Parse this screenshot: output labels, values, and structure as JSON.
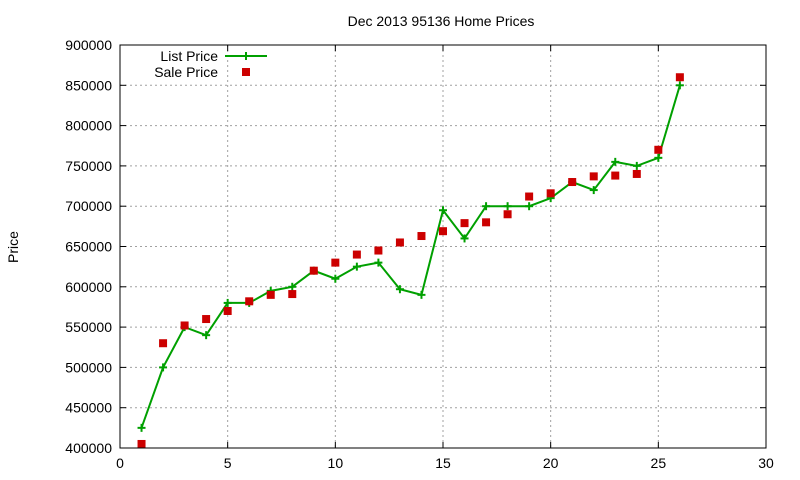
{
  "chart_data": {
    "type": "line",
    "title": "Dec 2013 95136 Home Prices",
    "xlabel": "",
    "ylabel": "Price",
    "xlim": [
      0,
      30
    ],
    "ylim": [
      400000,
      900000
    ],
    "xticks": [
      0,
      5,
      10,
      15,
      20,
      25,
      30
    ],
    "yticks": [
      400000,
      450000,
      500000,
      550000,
      600000,
      650000,
      700000,
      750000,
      800000,
      850000,
      900000
    ],
    "xtick_labels": [
      "0",
      "5",
      "10",
      "15",
      "20",
      "25",
      "30"
    ],
    "ytick_labels": [
      "400000",
      "450000",
      "500000",
      "550000",
      "600000",
      "650000",
      "700000",
      "750000",
      "800000",
      "850000",
      "900000"
    ],
    "grid": true,
    "legend_position": "top-left",
    "series": [
      {
        "name": "List Price",
        "style": "line-plus",
        "color": "#00a000",
        "x": [
          1,
          2,
          3,
          4,
          5,
          6,
          7,
          8,
          9,
          10,
          11,
          12,
          13,
          14,
          15,
          16,
          17,
          18,
          19,
          20,
          21,
          22,
          23,
          24,
          25,
          26
        ],
        "y": [
          425000,
          500000,
          550000,
          540000,
          580000,
          580000,
          595000,
          600000,
          620000,
          610000,
          625000,
          630000,
          597000,
          590000,
          695000,
          660000,
          700000,
          700000,
          700000,
          710000,
          730000,
          720000,
          755000,
          750000,
          760000,
          850000
        ]
      },
      {
        "name": "Sale Price",
        "style": "square",
        "color": "#cc0000",
        "x": [
          1,
          2,
          3,
          4,
          5,
          6,
          7,
          8,
          9,
          10,
          11,
          12,
          13,
          14,
          15,
          16,
          17,
          18,
          19,
          20,
          21,
          22,
          23,
          24,
          25,
          26
        ],
        "y": [
          405000,
          530000,
          552000,
          560000,
          570000,
          582000,
          590000,
          591000,
          620000,
          630000,
          640000,
          645000,
          655000,
          663000,
          669000,
          679000,
          680000,
          690000,
          712000,
          716000,
          730000,
          737000,
          738000,
          740000,
          770000,
          860000
        ]
      }
    ]
  }
}
